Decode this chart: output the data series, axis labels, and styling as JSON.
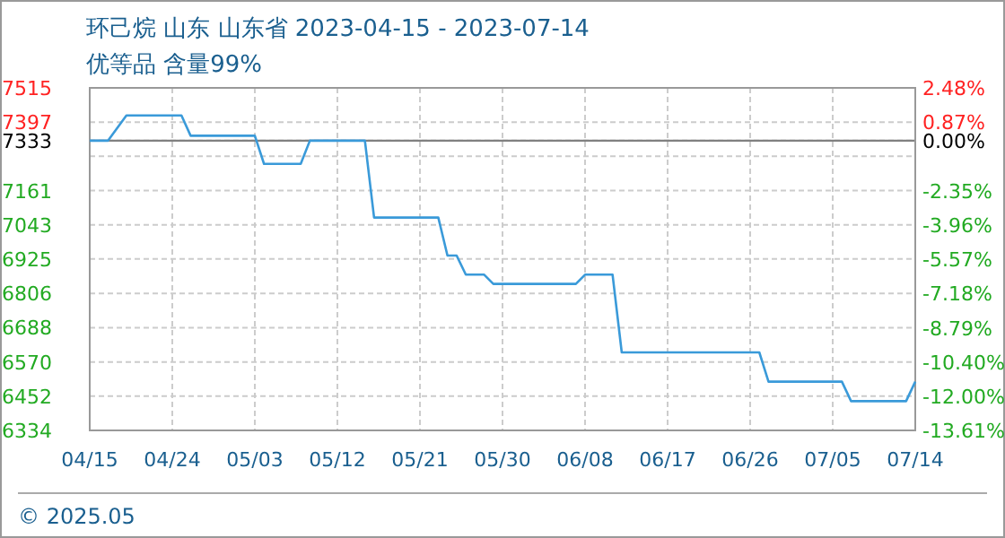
{
  "chart_data": {
    "type": "line",
    "title": "环己烷 山东 山东省 2023-04-15 - 2023-07-14",
    "subtitle": "优等品 含量99%",
    "annotations": [
      "© 2025.05"
    ],
    "x": [
      "2023-04-15",
      "2023-04-17",
      "2023-04-19",
      "2023-04-25",
      "2023-04-26",
      "2023-05-03",
      "2023-05-04",
      "2023-05-08",
      "2023-05-09",
      "2023-05-15",
      "2023-05-16",
      "2023-05-23",
      "2023-05-24",
      "2023-05-25",
      "2023-05-26",
      "2023-05-28",
      "2023-05-29",
      "2023-06-07",
      "2023-06-08",
      "2023-06-11",
      "2023-06-12",
      "2023-06-27",
      "2023-06-28",
      "2023-07-06",
      "2023-07-07",
      "2023-07-13",
      "2023-07-14"
    ],
    "series": [
      {
        "color": "#3a9ad9",
        "values": [
          7333,
          7333,
          7420,
          7420,
          7350,
          7350,
          7253,
          7253,
          7333,
          7333,
          7068,
          7068,
          6937,
          6937,
          6871,
          6871,
          6839,
          6839,
          6871,
          6871,
          6603,
          6603,
          6502,
          6502,
          6435,
          6435,
          6502
        ]
      }
    ],
    "xlim": [
      "2023-04-15",
      "2023-07-14"
    ],
    "xticks": [
      {
        "value": "2023-04-15",
        "label": "04/15"
      },
      {
        "value": "2023-04-24",
        "label": "04/24"
      },
      {
        "value": "2023-05-03",
        "label": "05/03"
      },
      {
        "value": "2023-05-12",
        "label": "05/12"
      },
      {
        "value": "2023-05-21",
        "label": "05/21"
      },
      {
        "value": "2023-05-30",
        "label": "05/30"
      },
      {
        "value": "2023-06-08",
        "label": "06/08"
      },
      {
        "value": "2023-06-17",
        "label": "06/17"
      },
      {
        "value": "2023-06-26",
        "label": "06/26"
      },
      {
        "value": "2023-07-05",
        "label": "07/05"
      },
      {
        "value": "2023-07-14",
        "label": "07/14"
      }
    ],
    "ylim": [
      6334,
      7515
    ],
    "yticks": [
      7515,
      7397,
      7333,
      {
        "value": 7279,
        "label": null
      },
      7161,
      7043,
      6925,
      6806,
      6688,
      6570,
      6452,
      6334
    ],
    "y2lim": [
      -13.61,
      2.48
    ],
    "y2ticks": [
      {
        "value": 2.48,
        "label": "2.48%"
      },
      {
        "value": 0.87,
        "label": "0.87%"
      },
      {
        "value": 0,
        "label": "0.00%"
      },
      {
        "value": -0.74,
        "label": null
      },
      {
        "value": -2.35,
        "label": "-2.35%"
      },
      {
        "value": -3.96,
        "label": "-3.96%"
      },
      {
        "value": -5.57,
        "label": "-5.57%"
      },
      {
        "value": -7.18,
        "label": "-7.18%"
      },
      {
        "value": -8.79,
        "label": "-8.79%"
      },
      {
        "value": -10.4,
        "label": "-10.40%"
      },
      {
        "value": -12,
        "label": "-12.00%"
      },
      {
        "value": -13.61,
        "label": "-13.61%"
      }
    ],
    "ref_lines": [
      {
        "axis": "y",
        "value": 7333,
        "label": null,
        "color": "#808080"
      }
    ],
    "grid": true,
    "marker": "none",
    "line_style": "solid"
  }
}
